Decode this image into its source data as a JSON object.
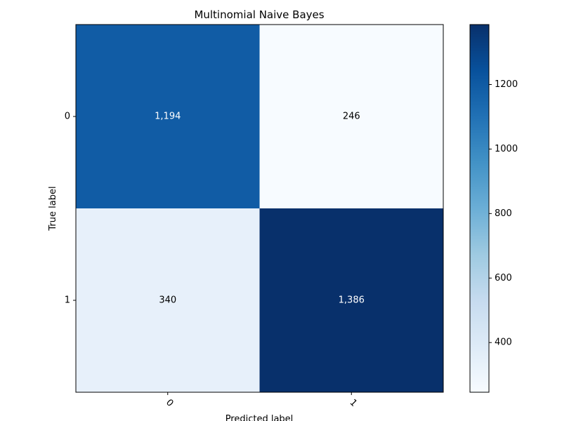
{
  "chart_data": {
    "type": "heatmap",
    "title": "Multinomial Naive Bayes",
    "xlabel": "Predicted label",
    "ylabel": "True label",
    "x_categories": [
      "0",
      "1"
    ],
    "y_categories": [
      "0",
      "1"
    ],
    "matrix": [
      [
        1194,
        246
      ],
      [
        340,
        1386
      ]
    ],
    "cell_labels": [
      [
        "1,194",
        "246"
      ],
      [
        "340",
        "1,386"
      ]
    ],
    "colormap": "Blues",
    "color_range": [
      246,
      1386
    ],
    "colorbar_ticks": [
      400,
      600,
      800,
      1000,
      1200
    ],
    "colorbar_tick_labels": [
      "400",
      "600",
      "800",
      "1000",
      "1200"
    ],
    "x_tick_rotation_deg": 45,
    "grid": false,
    "legend": "colorbar-right"
  }
}
